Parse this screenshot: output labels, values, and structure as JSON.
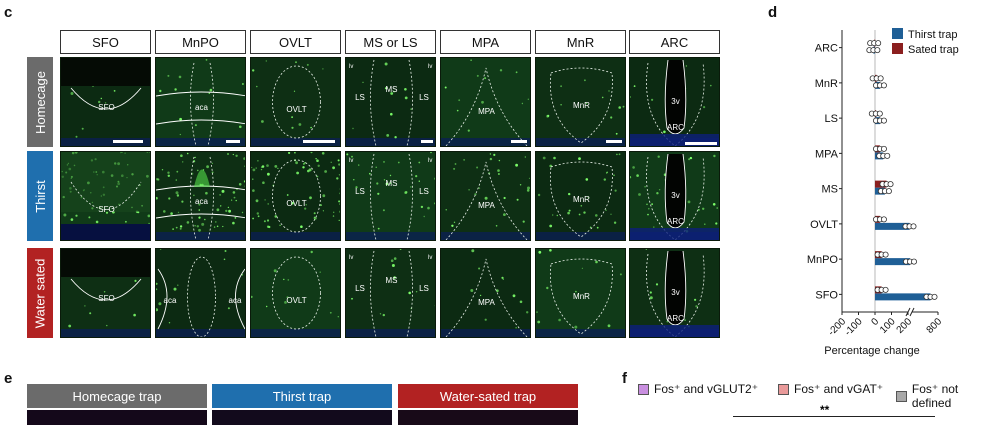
{
  "panel_c": {
    "letter": "c",
    "columns": [
      "SFO",
      "MnPO",
      "OVLT",
      "MS or LS",
      "MPA",
      "MnR",
      "ARC"
    ],
    "rows": [
      {
        "label": "Homecage",
        "color": "#6b6b6b"
      },
      {
        "label": "Thirst",
        "color": "#1f6fae"
      },
      {
        "label": "Water sated",
        "color": "#b22222"
      }
    ],
    "region_labels": {
      "sfo": "SFO",
      "aca": "aca",
      "ovlt": "OVLT",
      "ms": "MS",
      "ls": "LS",
      "mpa": "MPA",
      "mnr": "MnR",
      "arc": "ARC",
      "v3": "3v"
    }
  },
  "panel_d": {
    "letter": "d",
    "xlabel": "Percentage change",
    "chart_data": {
      "type": "bar",
      "orientation": "horizontal",
      "categories": [
        "ARC",
        "MnR",
        "LS",
        "MPA",
        "MS",
        "OVLT",
        "MnPO",
        "SFO"
      ],
      "series": [
        {
          "name": "Thirst trap",
          "color": "#1f5f96",
          "values": [
            -10,
            30,
            30,
            50,
            60,
            230,
            240,
            650
          ]
        },
        {
          "name": "Sated trap",
          "color": "#8b1f1f",
          "values": [
            -5,
            10,
            5,
            30,
            70,
            30,
            40,
            40
          ]
        }
      ],
      "xticks": [
        "-200",
        "-100",
        "0",
        "100",
        "200",
        "800"
      ],
      "xlim": [
        -200,
        800
      ],
      "legend_position": "top-right"
    }
  },
  "panel_e": {
    "letter": "e",
    "headers": [
      {
        "label": "Homecage trap",
        "color": "#6b6b6b"
      },
      {
        "label": "Thirst trap",
        "color": "#1f6fae"
      },
      {
        "label": "Water-sated trap",
        "color": "#b22222"
      }
    ]
  },
  "panel_f": {
    "letter": "f",
    "legend": [
      {
        "label": "Fos⁺ and vGLUT2⁺",
        "color": "#c98fe0"
      },
      {
        "label": "Fos⁺ and vGAT⁺",
        "color": "#e99a9a"
      },
      {
        "label": "Fos⁺ not defined",
        "color": "#a8a8a8"
      }
    ],
    "significance": "**"
  }
}
